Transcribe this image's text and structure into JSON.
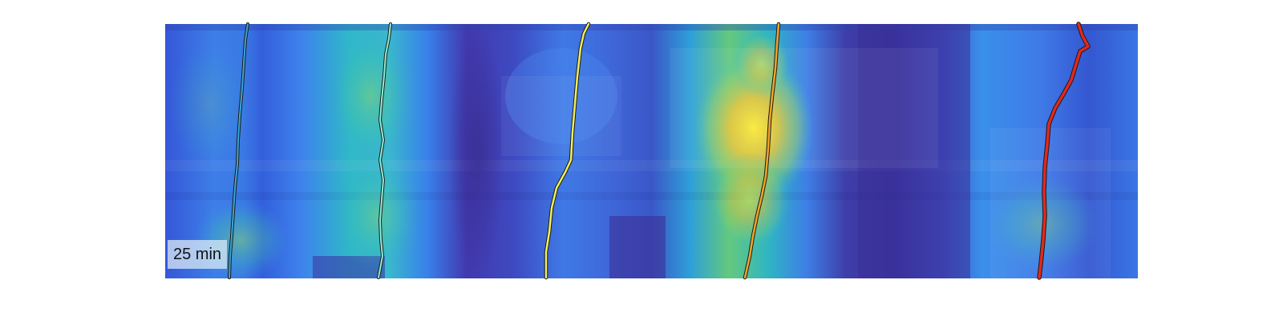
{
  "time_label": "25 min",
  "colors": {
    "background": "#ffffff",
    "heatmap_low": "#3b2f9e",
    "heatmap_mid": "#2d8cf0",
    "heatmap_teal": "#33c7b7",
    "heatmap_high": "#fde83b",
    "track_colors": [
      "#39a7d6",
      "#8ef0d7",
      "#f0f05a",
      "#f5a623",
      "#e3281d"
    ]
  },
  "image_content": {
    "type": "kymograph",
    "heatmap_colormap": "parula",
    "track_count": 5
  }
}
